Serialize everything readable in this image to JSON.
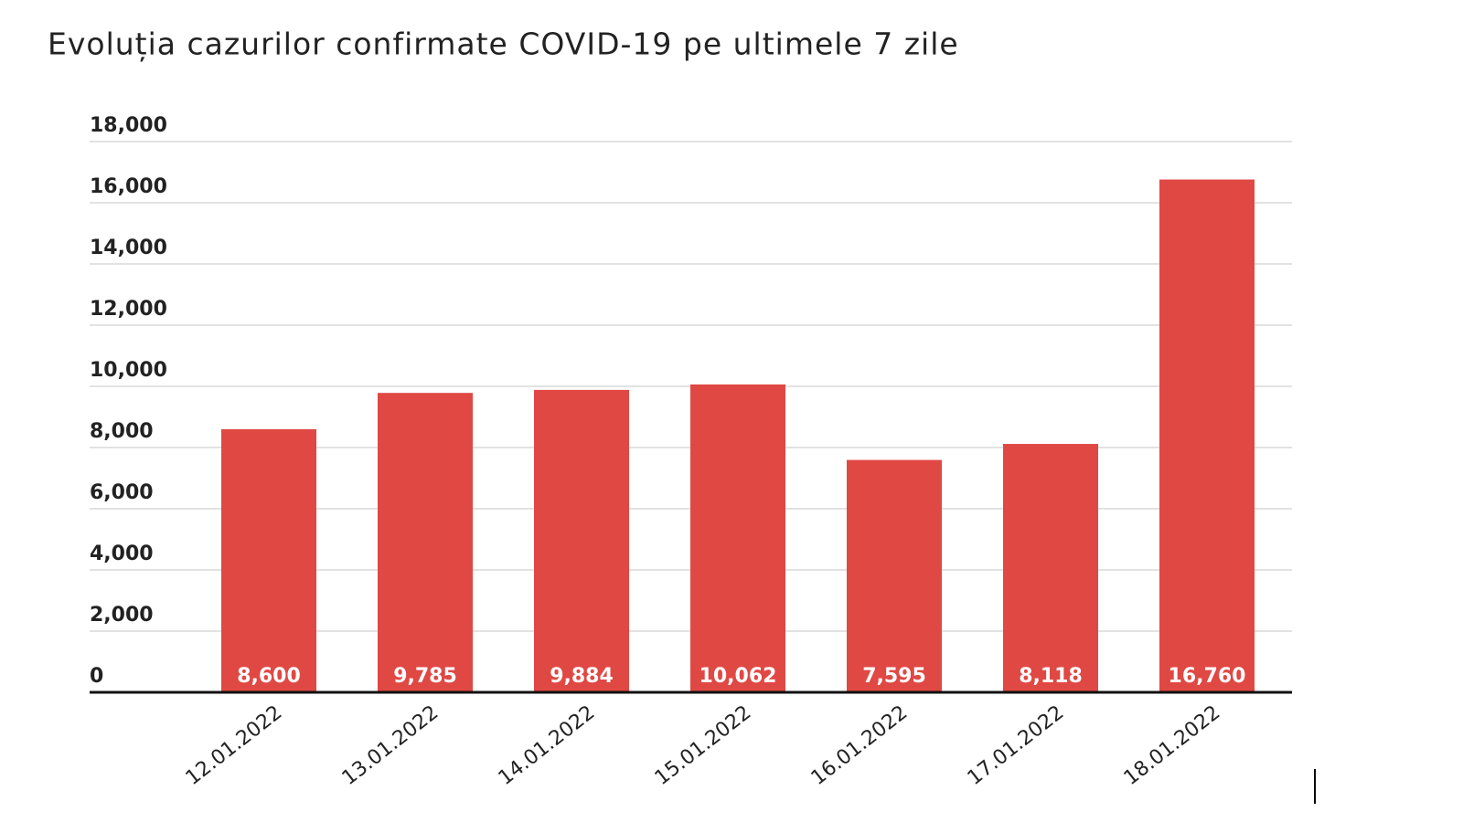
{
  "chart_data": {
    "type": "bar",
    "title": "Evoluția cazurilor confirmate COVID-19 pe ultimele 7 zile",
    "categories": [
      "12.01.2022",
      "13.01.2022",
      "14.01.2022",
      "15.01.2022",
      "16.01.2022",
      "17.01.2022",
      "18.01.2022"
    ],
    "values": [
      8600,
      9785,
      9884,
      10062,
      7595,
      8118,
      16760
    ],
    "value_labels": [
      "8,600",
      "9,785",
      "9,884",
      "10,062",
      "7,595",
      "8,118",
      "16,760"
    ],
    "color": "#e04844",
    "ylim": [
      0,
      18000
    ],
    "yticks": [
      0,
      {
        "value": 2000,
        "label": "2,000"
      },
      {
        "value": 4000,
        "label": "4,000"
      },
      {
        "value": 6000,
        "label": "6,000"
      },
      {
        "value": 8000,
        "label": "8,000"
      },
      {
        "value": 10000,
        "label": "10,000"
      },
      {
        "value": 12000,
        "label": "12,000"
      },
      {
        "value": 14000,
        "label": "14,000"
      },
      {
        "value": 16000,
        "label": "16,000"
      },
      {
        "value": 18000,
        "label": "18,000"
      }
    ],
    "grid": true
  }
}
